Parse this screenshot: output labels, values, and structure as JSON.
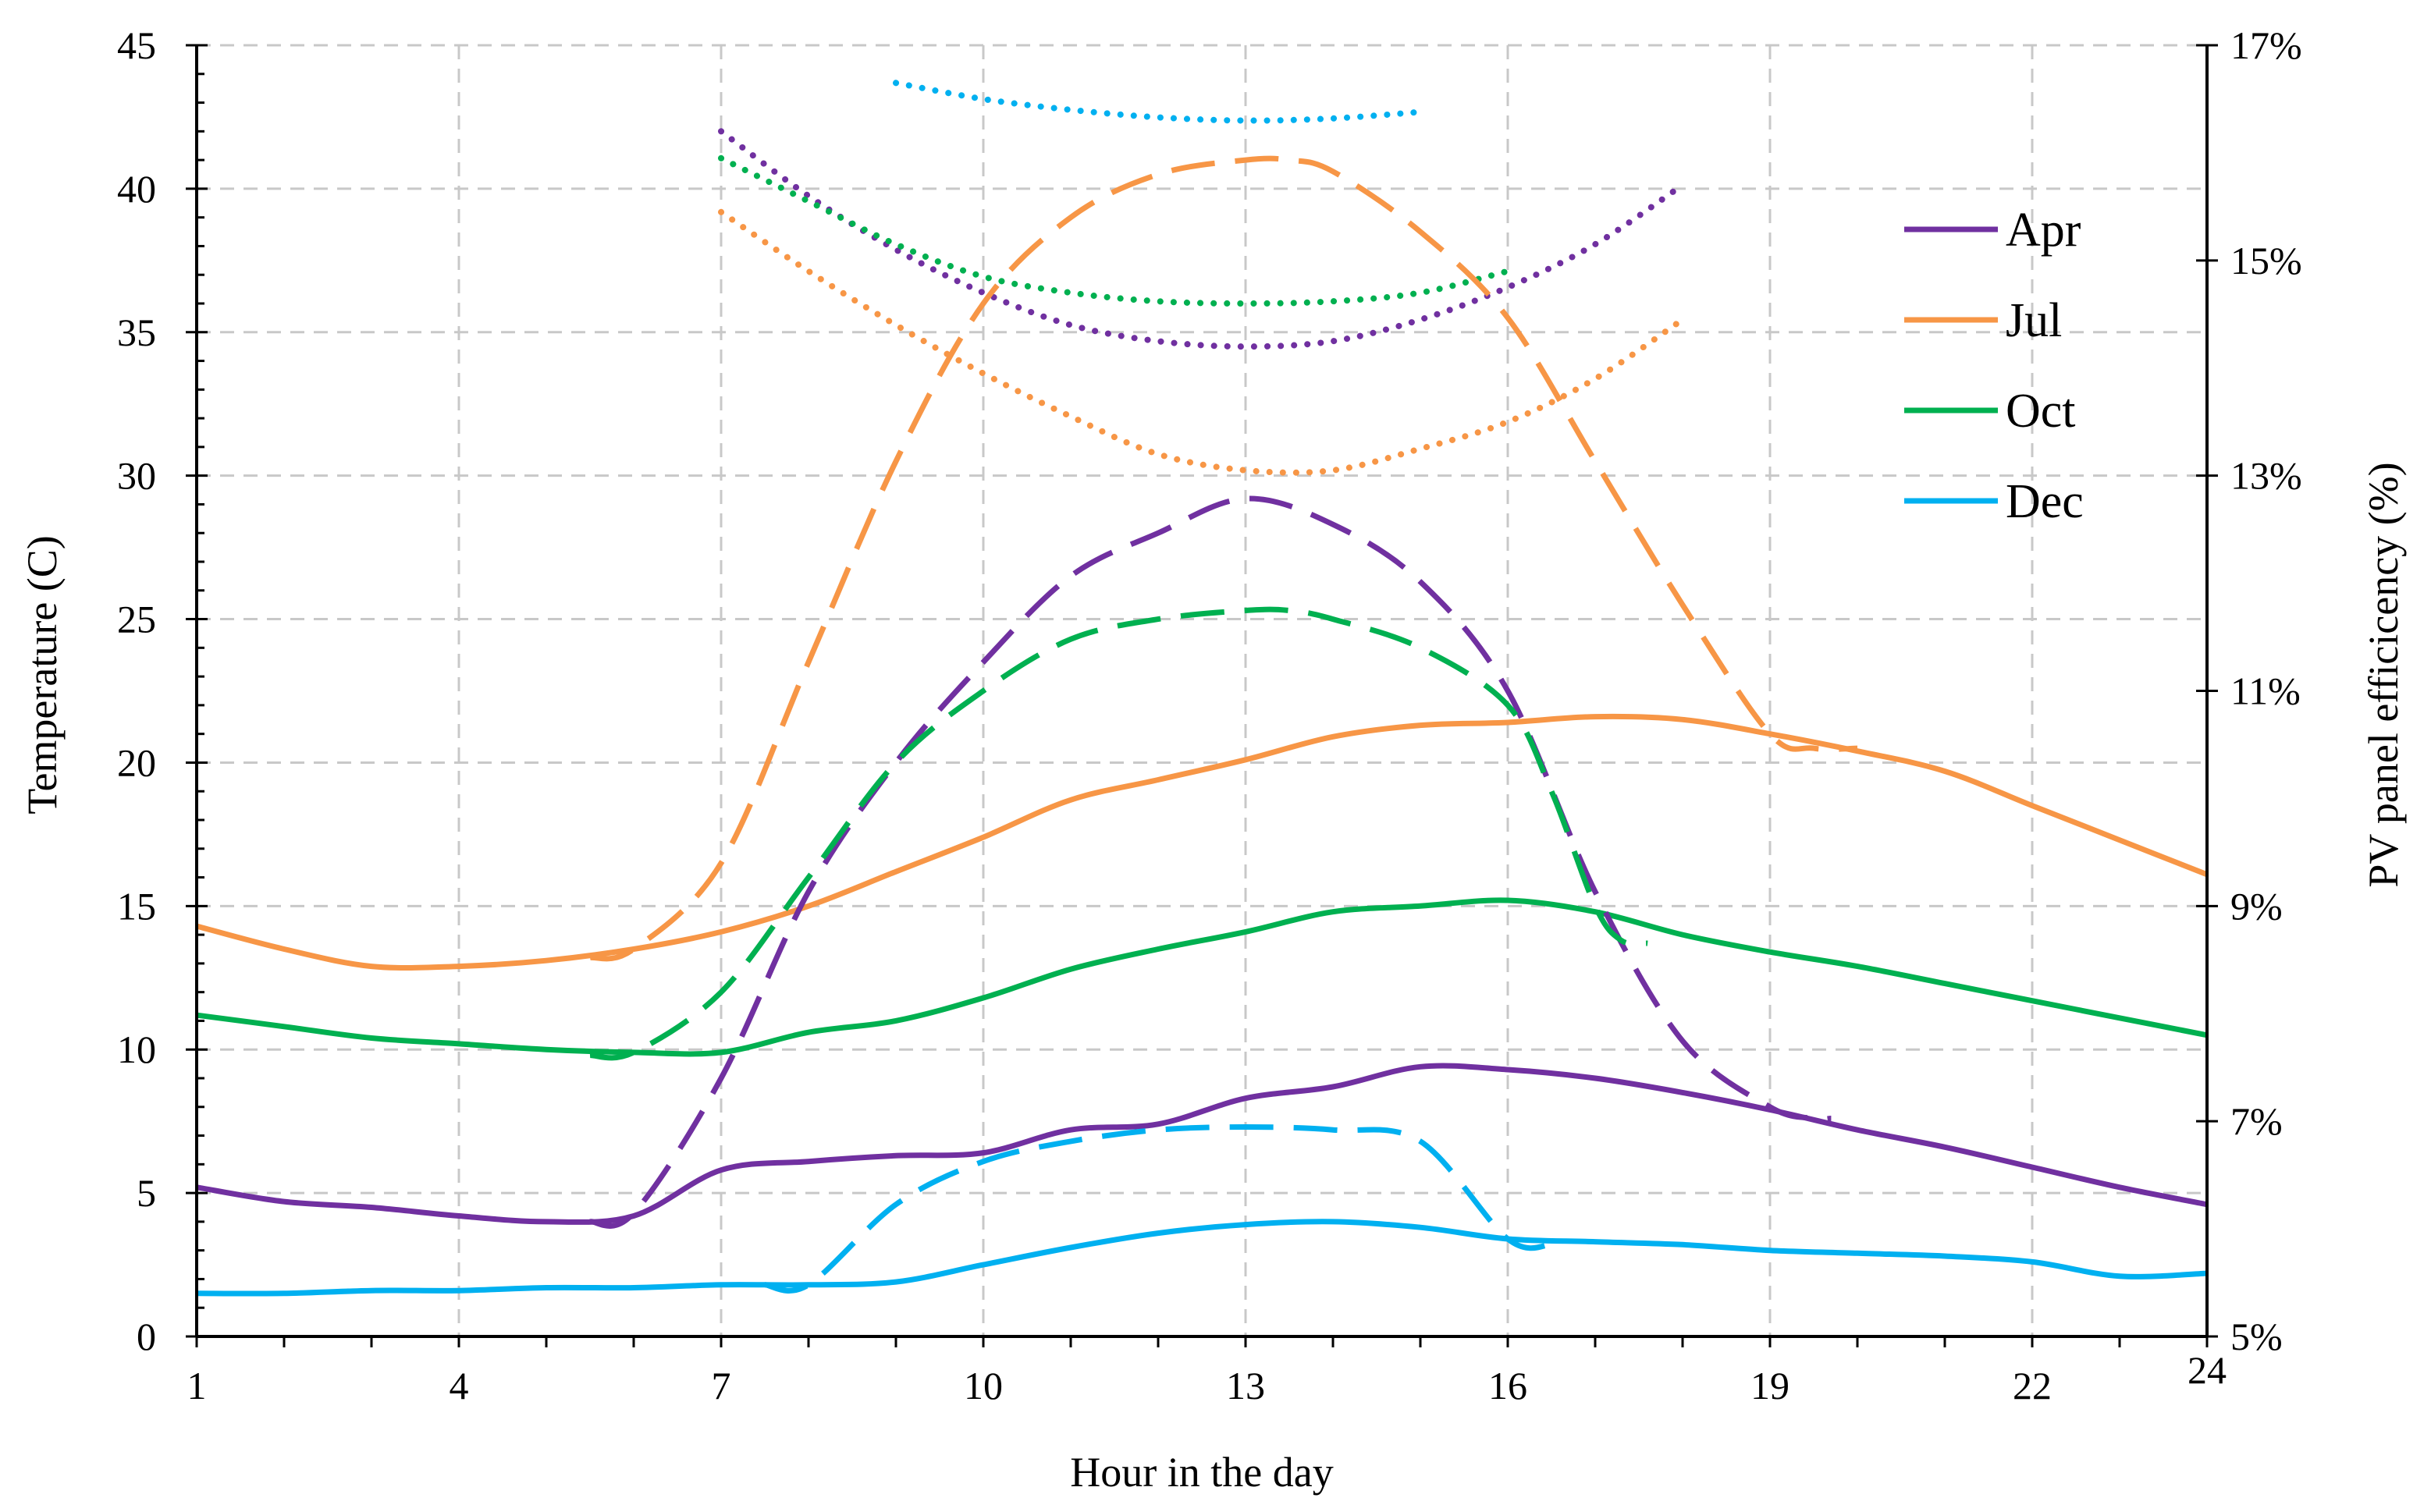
{
  "chart_data": {
    "type": "line",
    "title": "",
    "xlabel": "Hour in the day",
    "ylabel_left": "Temperature (C)",
    "ylabel_right": "PV panel efficicency (%)",
    "xlim": [
      1,
      24
    ],
    "ylim_left": [
      0,
      45
    ],
    "ylim_right": [
      5,
      17
    ],
    "x_ticks": [
      1,
      4,
      7,
      10,
      13,
      16,
      19,
      22,
      24
    ],
    "x_tick_labels": [
      "1",
      "4",
      "7",
      "10",
      "13",
      "16",
      "19",
      "22",
      "24"
    ],
    "y_left_ticks": [
      0,
      5,
      10,
      15,
      20,
      25,
      30,
      35,
      40,
      45
    ],
    "y_left_tick_labels": [
      "0",
      "5",
      "10",
      "15",
      "20",
      "25",
      "30",
      "35",
      "40",
      "45"
    ],
    "y_right_ticks": [
      5,
      7,
      9,
      11,
      13,
      15,
      17
    ],
    "y_right_tick_labels": [
      "5%",
      "7%",
      "9%",
      "11%",
      "13%",
      "15%",
      "17%"
    ],
    "grid": true,
    "legend_position": "top-right",
    "colors": {
      "Apr": "#7030A0",
      "Jul": "#F79646",
      "Oct": "#00B050",
      "Dec": "#00B0F0"
    },
    "line_styles": {
      "solid": "ambient temperature (left axis)",
      "dashed": "panel temperature (left axis)",
      "dotted": "PV panel efficiency (right axis)"
    },
    "legend": [
      "Apr",
      "Jul",
      "Oct",
      "Dec"
    ],
    "series": [
      {
        "name": "Apr",
        "style": "solid",
        "axis": "left",
        "x": [
          1,
          2,
          3,
          4,
          5,
          6,
          7,
          8,
          9,
          10,
          11,
          12,
          13,
          14,
          15,
          16,
          17,
          18,
          19,
          20,
          21,
          22,
          23,
          24
        ],
        "y": [
          5.2,
          4.7,
          4.5,
          4.2,
          4.0,
          4.2,
          5.8,
          6.1,
          6.3,
          6.4,
          7.2,
          7.4,
          8.3,
          8.7,
          9.4,
          9.3,
          9.0,
          8.5,
          7.9,
          7.2,
          6.6,
          5.9,
          5.2,
          4.6
        ]
      },
      {
        "name": "Jul",
        "style": "solid",
        "axis": "left",
        "x": [
          1,
          2,
          3,
          4,
          5,
          6,
          7,
          8,
          9,
          10,
          11,
          12,
          13,
          14,
          15,
          16,
          17,
          18,
          19,
          20,
          21,
          22,
          23,
          24
        ],
        "y": [
          14.3,
          13.5,
          12.9,
          12.9,
          13.1,
          13.5,
          14.1,
          15.0,
          16.2,
          17.4,
          18.7,
          19.4,
          20.1,
          20.9,
          21.3,
          21.4,
          21.6,
          21.5,
          21.0,
          20.4,
          19.7,
          18.5,
          17.3,
          16.1
        ]
      },
      {
        "name": "Oct",
        "style": "solid",
        "axis": "left",
        "x": [
          1,
          2,
          3,
          4,
          5,
          6,
          7,
          8,
          9,
          10,
          11,
          12,
          13,
          14,
          15,
          16,
          17,
          18,
          19,
          20,
          21,
          22,
          23,
          24
        ],
        "y": [
          11.2,
          10.8,
          10.4,
          10.2,
          10.0,
          9.9,
          9.9,
          10.6,
          11.0,
          11.8,
          12.8,
          13.5,
          14.1,
          14.8,
          15.0,
          15.2,
          14.8,
          14.0,
          13.4,
          12.9,
          12.3,
          11.7,
          11.1,
          10.5
        ]
      },
      {
        "name": "Dec",
        "style": "solid",
        "axis": "left",
        "x": [
          1,
          2,
          3,
          4,
          5,
          6,
          7,
          8,
          9,
          10,
          11,
          12,
          13,
          14,
          15,
          16,
          17,
          18,
          19,
          20,
          21,
          22,
          23,
          24
        ],
        "y": [
          1.5,
          1.5,
          1.6,
          1.6,
          1.7,
          1.7,
          1.8,
          1.8,
          1.9,
          2.5,
          3.1,
          3.6,
          3.9,
          4.0,
          3.8,
          3.4,
          3.3,
          3.2,
          3.0,
          2.9,
          2.8,
          2.6,
          2.1,
          2.2
        ]
      },
      {
        "name": "Apr",
        "style": "dashed",
        "axis": "left",
        "x": [
          5.5,
          6,
          7,
          8,
          9,
          10,
          11,
          12,
          13,
          14,
          15,
          16,
          17,
          18,
          19,
          19.5,
          19.7
        ],
        "y": [
          4.0,
          4.3,
          9.0,
          15.5,
          20.0,
          23.5,
          26.5,
          28.0,
          29.2,
          28.3,
          26.3,
          22.5,
          15.5,
          10.3,
          8.0,
          7.6,
          7.6
        ]
      },
      {
        "name": "Jul",
        "style": "dashed",
        "axis": "left",
        "x": [
          5.5,
          6,
          7,
          8,
          9,
          10,
          11,
          12,
          13,
          13.5,
          14,
          15,
          16,
          17,
          18,
          19,
          19.5,
          20
        ],
        "y": [
          13.2,
          13.5,
          16.5,
          23.5,
          30.5,
          36.0,
          39.0,
          40.5,
          41.0,
          41.0,
          40.6,
          38.5,
          35.5,
          30.5,
          25.5,
          21.0,
          20.5,
          20.5
        ]
      },
      {
        "name": "Oct",
        "style": "dashed",
        "axis": "left",
        "x": [
          5.5,
          6,
          7,
          8,
          9,
          10,
          11,
          12,
          13,
          13.5,
          14,
          15,
          16,
          16.5,
          17,
          17.3,
          17.6
        ],
        "y": [
          9.8,
          9.9,
          12.0,
          16.0,
          20.0,
          22.5,
          24.3,
          25.0,
          25.3,
          25.3,
          25.0,
          24.0,
          22.0,
          19.0,
          15.0,
          13.8,
          13.7
        ]
      },
      {
        "name": "Dec",
        "style": "dashed",
        "axis": "left",
        "x": [
          7.5,
          8,
          9,
          10,
          11,
          12,
          13,
          14,
          15,
          16,
          16.5
        ],
        "y": [
          1.8,
          1.8,
          4.6,
          6.1,
          6.8,
          7.2,
          7.3,
          7.2,
          6.8,
          3.4,
          3.2
        ]
      },
      {
        "name": "Apr",
        "style": "dotted",
        "axis": "right",
        "x": [
          7,
          8,
          9,
          10,
          11,
          12,
          13,
          14,
          15,
          16,
          17,
          18
        ],
        "y": [
          16.2,
          15.6,
          15.1,
          14.7,
          14.4,
          14.25,
          14.2,
          14.25,
          14.45,
          14.75,
          15.15,
          15.7
        ]
      },
      {
        "name": "Jul",
        "style": "dotted",
        "axis": "right",
        "x": [
          7,
          8,
          9,
          10,
          11,
          12,
          13,
          14,
          15,
          16,
          17,
          18
        ],
        "y": [
          15.45,
          14.9,
          14.4,
          13.95,
          13.55,
          13.2,
          13.05,
          13.05,
          13.25,
          13.5,
          13.9,
          14.45
        ]
      },
      {
        "name": "Oct",
        "style": "dotted",
        "axis": "right",
        "x": [
          7,
          8,
          9,
          10,
          11,
          12,
          13,
          14,
          15,
          16
        ],
        "y": [
          15.95,
          15.55,
          15.15,
          14.85,
          14.7,
          14.62,
          14.6,
          14.62,
          14.7,
          14.9
        ]
      },
      {
        "name": "Dec",
        "style": "dotted",
        "axis": "right",
        "x": [
          9,
          10,
          11,
          12,
          13,
          14,
          15
        ],
        "y": [
          16.65,
          16.5,
          16.4,
          16.33,
          16.3,
          16.32,
          16.38
        ]
      }
    ]
  }
}
